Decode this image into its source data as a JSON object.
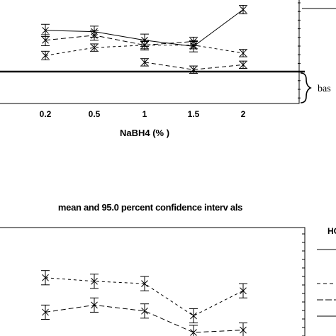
{
  "chart_data": [
    {
      "type": "line",
      "xlabel": "NaBH4 (% )",
      "categories": [
        "0.2",
        "0.5",
        "1",
        "1.5",
        "2"
      ],
      "annotation": "bas",
      "series": [
        {
          "values": [
            null,
            null,
            14.2,
            15.4,
            14.6
          ],
          "err": [
            0.5,
            0.5,
            0.6,
            0.6,
            0.6
          ],
          "dash": "6,4"
        },
        {
          "values": [
            13.1,
            11.8,
            11.4,
            11.4,
            12.7
          ],
          "err": [
            0.7,
            0.6,
            0.6,
            0.6,
            0.6
          ],
          "dash": "4,4"
        },
        {
          "values": [
            10.6,
            9.8,
            11.4,
            10.8,
            null
          ],
          "err": [
            0.9,
            0.8,
            0.8,
            0.7,
            0.7
          ],
          "dash": "7,4"
        },
        {
          "values": [
            9.0,
            9.2,
            10.6,
            11.6,
            5.6
          ],
          "err": [
            1.0,
            0.9,
            1.0,
            0.9,
            0.7
          ],
          "dash": ""
        }
      ]
    },
    {
      "type": "line",
      "title": "mean and 95.0 percent confidence interv als",
      "categories": [
        "0.2",
        "0.5",
        "1",
        "1.5",
        "2"
      ],
      "legend_title": "HC",
      "series": [
        {
          "values": [
            7.2,
            6.6,
            7.1,
            8.9,
            8.7
          ],
          "err": [
            0.6,
            0.6,
            0.6,
            0.6,
            0.6
          ],
          "dash": "7,4"
        },
        {
          "values": [
            4.3,
            4.6,
            4.8,
            7.5,
            5.4
          ],
          "err": [
            0.6,
            0.6,
            0.6,
            0.6,
            0.6
          ],
          "dash": "4,4"
        }
      ]
    }
  ]
}
